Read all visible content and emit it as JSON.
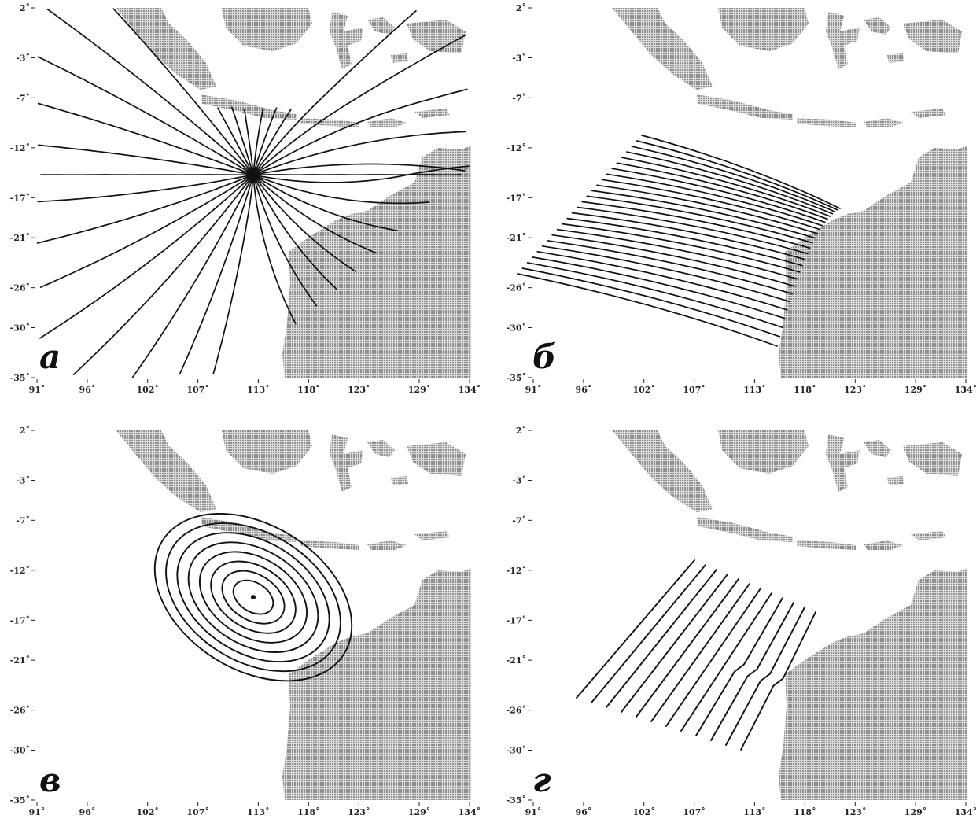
{
  "figure": {
    "panels": [
      {
        "id": "a",
        "letter": "а",
        "type": "rays-from-point"
      },
      {
        "id": "b",
        "letter": "б",
        "type": "rays-parallel"
      },
      {
        "id": "c",
        "letter": "в",
        "type": "fronts-concentric"
      },
      {
        "id": "d",
        "letter": "г",
        "type": "fronts-plane"
      }
    ],
    "lat_ticks": [
      "2˚",
      "-3˚",
      "-7˚",
      "-12˚",
      "-17˚",
      "-21˚",
      "-26˚",
      "-30˚",
      "-35˚"
    ],
    "lon_ticks": [
      "91˚",
      "96˚",
      "102˚",
      "107˚",
      "113˚",
      "118˚",
      "123˚",
      "129˚",
      "134˚"
    ],
    "lat_values": [
      2,
      -3,
      -7,
      -12,
      -17,
      -21,
      -26,
      -30,
      -35
    ],
    "lon_values": [
      91,
      96,
      102,
      107,
      113,
      118,
      123,
      129,
      134
    ],
    "source_point": {
      "lon": 112.5,
      "lat": -14.7
    },
    "land_color": "#a9a9a9",
    "line_color": "#111111"
  }
}
